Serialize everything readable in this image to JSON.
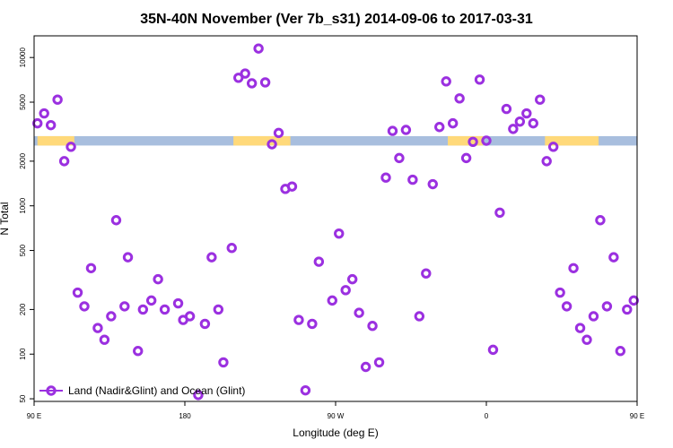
{
  "chart_data": {
    "type": "scatter",
    "title": "35N-40N November (Ver 7b_s31)   2014-09-06 to 2017-03-31",
    "xlabel": "Longitude (deg E)",
    "ylabel": "N Total",
    "xlim": [
      90,
      450
    ],
    "ylim_log": [
      48,
      14000
    ],
    "y_scale": "log",
    "x_ticks": [
      {
        "value": 90,
        "label": "90 E"
      },
      {
        "value": 180,
        "label": "180"
      },
      {
        "value": 270,
        "label": "90 W"
      },
      {
        "value": 360,
        "label": "0"
      },
      {
        "value": 450,
        "label": "90 E"
      },
      {
        "value": 540,
        "label": "180"
      }
    ],
    "y_ticks": [
      {
        "value": 50,
        "label": "50"
      },
      {
        "value": 100,
        "label": "100"
      },
      {
        "value": 200,
        "label": "200"
      },
      {
        "value": 500,
        "label": "500"
      },
      {
        "value": 1000,
        "label": "1000"
      },
      {
        "value": 2000,
        "label": "2000"
      },
      {
        "value": 5000,
        "label": "5000"
      },
      {
        "value": 10000,
        "label": "10000"
      }
    ],
    "legend": {
      "label": "Land (Nadir&Glint) and Ocean (Glint)",
      "placement": "bottom-left"
    },
    "colors": {
      "marker": "#9b30e0",
      "land": "#ffd97a",
      "ocean": "#a8bede",
      "hline": "#555555"
    },
    "hline_value": 48,
    "surface_band": {
      "y_range": [
        2550,
        2950
      ],
      "land_segments": [
        [
          92,
          114
        ],
        [
          209,
          243
        ],
        [
          337,
          358
        ],
        [
          395,
          427
        ],
        [
          458,
          488
        ]
      ]
    },
    "series": [
      {
        "points": [
          [
            92,
            3600
          ],
          [
            96,
            4200
          ],
          [
            100,
            3500
          ],
          [
            104,
            5200
          ],
          [
            108,
            2000
          ],
          [
            112,
            2500
          ],
          [
            116,
            260
          ],
          [
            120,
            210
          ],
          [
            124,
            380
          ],
          [
            128,
            150
          ],
          [
            132,
            125
          ],
          [
            136,
            180
          ],
          [
            139,
            800
          ],
          [
            144,
            210
          ],
          [
            146,
            450
          ],
          [
            152,
            105
          ],
          [
            155,
            200
          ],
          [
            160,
            230
          ],
          [
            164,
            320
          ],
          [
            168,
            200
          ],
          [
            176,
            220
          ],
          [
            179,
            170
          ],
          [
            183,
            180
          ],
          [
            188,
            53
          ],
          [
            192,
            160
          ],
          [
            196,
            450
          ],
          [
            200,
            200
          ],
          [
            203,
            88
          ],
          [
            208,
            520
          ],
          [
            212,
            7300
          ],
          [
            216,
            7800
          ],
          [
            220,
            6700
          ],
          [
            224,
            11500
          ],
          [
            228,
            6800
          ],
          [
            232,
            2600
          ],
          [
            236,
            3100
          ],
          [
            240,
            1300
          ],
          [
            244,
            1350
          ],
          [
            248,
            170
          ],
          [
            252,
            57
          ],
          [
            256,
            160
          ],
          [
            260,
            420
          ],
          [
            268,
            230
          ],
          [
            272,
            650
          ],
          [
            276,
            270
          ],
          [
            280,
            320
          ],
          [
            284,
            190
          ],
          [
            288,
            82
          ],
          [
            292,
            155
          ],
          [
            296,
            88
          ],
          [
            300,
            1550
          ],
          [
            304,
            3200
          ],
          [
            308,
            2100
          ],
          [
            312,
            3250
          ],
          [
            316,
            1500
          ],
          [
            320,
            180
          ],
          [
            324,
            350
          ],
          [
            328,
            1400
          ],
          [
            332,
            3400
          ],
          [
            336,
            6900
          ],
          [
            340,
            3600
          ],
          [
            344,
            5300
          ],
          [
            348,
            2100
          ],
          [
            352,
            2700
          ],
          [
            356,
            7100
          ],
          [
            360,
            2750
          ],
          [
            364,
            107
          ],
          [
            368,
            900
          ],
          [
            372,
            4500
          ],
          [
            376,
            3300
          ],
          [
            380,
            3700
          ],
          [
            384,
            4200
          ],
          [
            388,
            3600
          ],
          [
            392,
            5200
          ],
          [
            396,
            2000
          ],
          [
            400,
            2500
          ],
          [
            404,
            260
          ],
          [
            408,
            210
          ],
          [
            412,
            380
          ],
          [
            416,
            150
          ],
          [
            420,
            125
          ],
          [
            424,
            180
          ],
          [
            428,
            800
          ],
          [
            432,
            210
          ],
          [
            436,
            450
          ],
          [
            440,
            105
          ],
          [
            444,
            200
          ],
          [
            448,
            230
          ]
        ]
      }
    ]
  }
}
